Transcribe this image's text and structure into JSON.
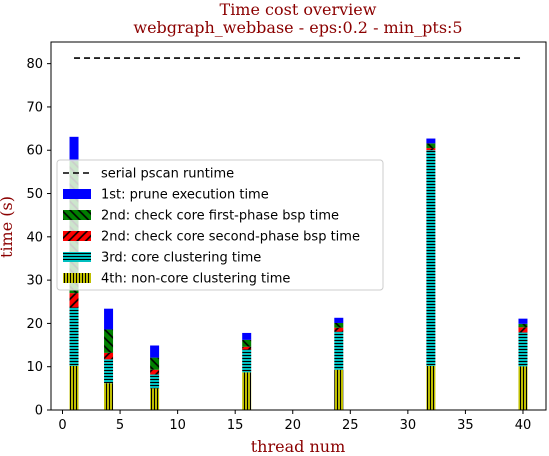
{
  "chart_data": {
    "type": "bar",
    "stacked": true,
    "title": "Time cost overview",
    "subtitle": "webgraph_webbase - eps:0.2 - min_pts:5",
    "xlabel": "thread num",
    "ylabel": "time (s)",
    "xlim": [
      -1,
      42
    ],
    "ylim": [
      0,
      85
    ],
    "xticks": [
      0,
      5,
      10,
      15,
      20,
      25,
      30,
      35,
      40
    ],
    "yticks": [
      0,
      10,
      20,
      30,
      40,
      50,
      60,
      70,
      80
    ],
    "x": [
      1,
      4,
      8,
      16,
      24,
      32,
      40
    ],
    "serial_runtime": {
      "name": "serial pscan runtime",
      "value": 81.3,
      "x_range": [
        1,
        40
      ]
    },
    "series": [
      {
        "name": "4th: non-core clustering time",
        "color": "#bfbf00",
        "pattern": "vert",
        "values": [
          10.2,
          6.2,
          5.0,
          8.7,
          9.3,
          10.2,
          10.1
        ]
      },
      {
        "name": "3rd: core clustering time",
        "color": "#00bfbf",
        "pattern": "horiz",
        "values": [
          13.5,
          5.5,
          3.2,
          5.3,
          8.8,
          49.8,
          7.8
        ]
      },
      {
        "name": "2nd: check core second-phase bsp time",
        "color": "#ff0000",
        "pattern": "diag-up",
        "values": [
          3.3,
          1.5,
          1.1,
          0.6,
          0.9,
          0.5,
          1.2
        ]
      },
      {
        "name": "2nd: check core first-phase bsp time",
        "color": "#008000",
        "pattern": "diag-down",
        "values": [
          30.5,
          5.4,
          2.8,
          1.6,
          1.1,
          1.1,
          0.8
        ]
      },
      {
        "name": "1st: prune execution time",
        "color": "#0000ff",
        "pattern": "solid",
        "values": [
          5.6,
          4.8,
          2.8,
          1.6,
          1.2,
          1.1,
          1.2
        ]
      }
    ],
    "legend": {
      "position": "center-left",
      "order": [
        "serial pscan runtime",
        "1st: prune execution time",
        "2nd: check core first-phase bsp time",
        "2nd: check core second-phase bsp time",
        "3rd: core clustering time",
        "4th: non-core clustering time"
      ]
    },
    "grid": false
  }
}
